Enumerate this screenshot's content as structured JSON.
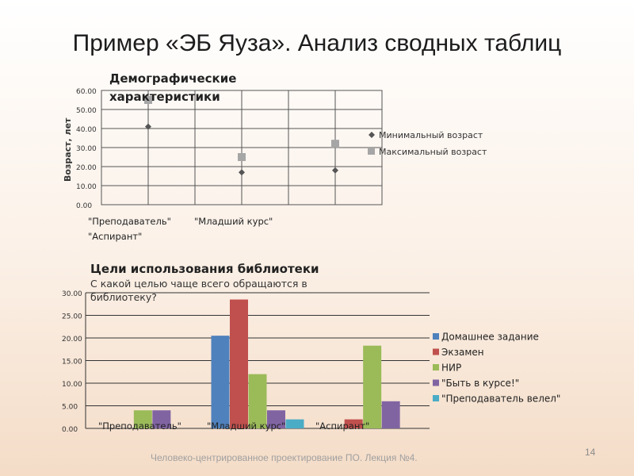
{
  "slide": {
    "title": "Пример «ЭБ Яуза». Анализ сводных таблиц",
    "footer": "Человеко-центрированное проектирование ПО. Лекция №4.",
    "page_number": "14"
  },
  "chart_data": [
    {
      "type": "scatter",
      "title": "Демографические характеристики",
      "title_lines": [
        "Демографические",
        "характеристики"
      ],
      "ylabel": "Возраст, лет",
      "ylim": [
        0,
        60
      ],
      "yticks": [
        "0.00",
        "10.00",
        "20.00",
        "30.00",
        "40.00",
        "50.00",
        "60.00"
      ],
      "categories": [
        "\"Преподаватель\"",
        "\"Младший курс\"",
        "\"Аспирант\""
      ],
      "grid": true,
      "legend": "right",
      "series": [
        {
          "name": "Минимальный возраст",
          "marker": "diamond",
          "color": "#555555",
          "values": [
            41,
            17,
            18
          ]
        },
        {
          "name": "Максимальный возраст",
          "marker": "square",
          "color": "#a6a6a6",
          "values": [
            55,
            25,
            32
          ]
        }
      ]
    },
    {
      "type": "bar",
      "title": "Цели использования библиотеки",
      "subtitle": "С какой целью чаще всего обращаются в библиотеку?",
      "subtitle_lines": [
        "С какой целью чаще всего обращаются в",
        "библиотеку?"
      ],
      "ylim": [
        0,
        30
      ],
      "yticks": [
        "0.00",
        "5.00",
        "10.00",
        "15.00",
        "20.00",
        "25.00",
        "30.00"
      ],
      "categories": [
        "\"Преподаватель\"",
        "\"Младший курс\"",
        "\"Аспирант\""
      ],
      "grid": true,
      "legend": "right",
      "series": [
        {
          "name": "Домашнее задание",
          "color": "#4f81bd",
          "values": [
            0,
            20.5,
            0
          ]
        },
        {
          "name": " Экзамен",
          "color": "#c0504d",
          "values": [
            0,
            28.5,
            2
          ]
        },
        {
          "name": "НИР",
          "color": "#9bbb59",
          "values": [
            4,
            12,
            18.3
          ]
        },
        {
          "name": "\"Быть в курсе!\"",
          "color": "#8064a2",
          "values": [
            4,
            4,
            6
          ]
        },
        {
          "name": "\"Преподаватель велел\"",
          "color": "#4bacc6",
          "values": [
            0,
            2,
            0
          ]
        }
      ]
    }
  ]
}
